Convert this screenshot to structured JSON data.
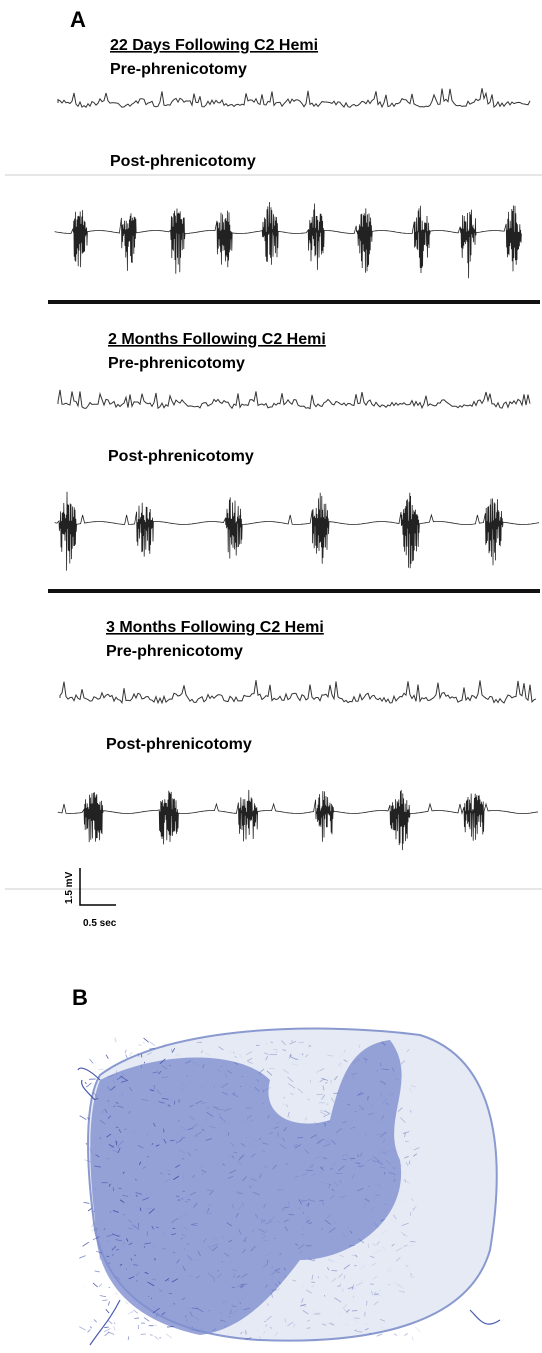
{
  "panel_a": {
    "label": "A",
    "sections": [
      {
        "title": "22 Days Following C2 Hemi",
        "pre": "Pre-phrenicotomy",
        "post": "Post-phrenicotomy"
      },
      {
        "title": "2 Months Following C2 Hemi",
        "pre": "Pre-phrenicotomy",
        "post": "Post-phrenicotomy"
      },
      {
        "title": "3 Months Following C2 Hemi",
        "pre": "Pre-phrenicotomy",
        "post": "Post-phrenicotomy"
      }
    ],
    "scale_bar": {
      "vertical": "1.5 mV",
      "horizontal": "0.5 sec"
    }
  },
  "panel_b": {
    "label": "B"
  }
}
